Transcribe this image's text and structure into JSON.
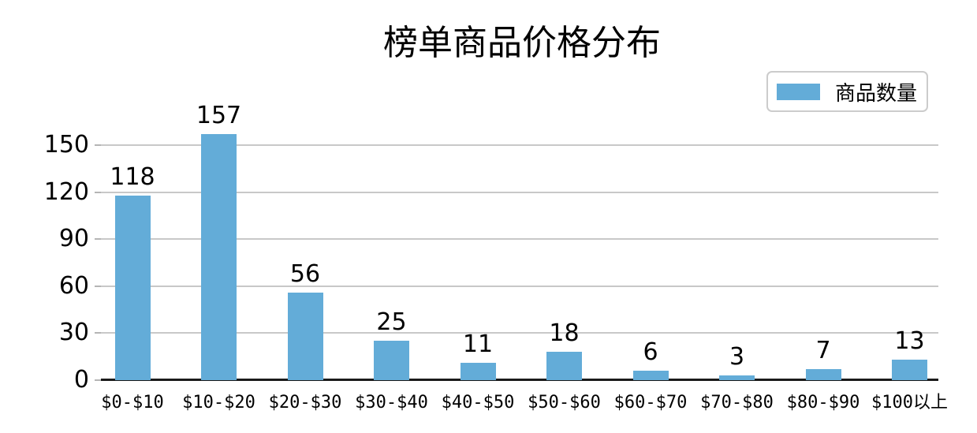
{
  "chart_data": {
    "type": "bar",
    "title": "榜单商品价格分布",
    "categories": [
      "$0-$10",
      "$10-$20",
      "$20-$30",
      "$30-$40",
      "$40-$50",
      "$50-$60",
      "$60-$70",
      "$70-$80",
      "$80-$90",
      "$100以上"
    ],
    "values": [
      118,
      157,
      56,
      25,
      11,
      18,
      6,
      3,
      7,
      13
    ],
    "series_name": "商品数量",
    "value_labels": [
      "118",
      "157",
      "56",
      "25",
      "11",
      "18",
      "6",
      "3",
      "7",
      "13"
    ],
    "yticks": [
      0,
      30,
      60,
      90,
      120,
      150
    ],
    "ylim": [
      0,
      165
    ],
    "xlabel": "",
    "ylabel": "",
    "grid": true,
    "legend_position": "upper-right",
    "colors": {
      "bar": "#63ACD8",
      "gridline": "#c8c8c8",
      "axis_line": "#1a1a1a",
      "text": "#000000",
      "legend_border": "#cccccc"
    }
  }
}
